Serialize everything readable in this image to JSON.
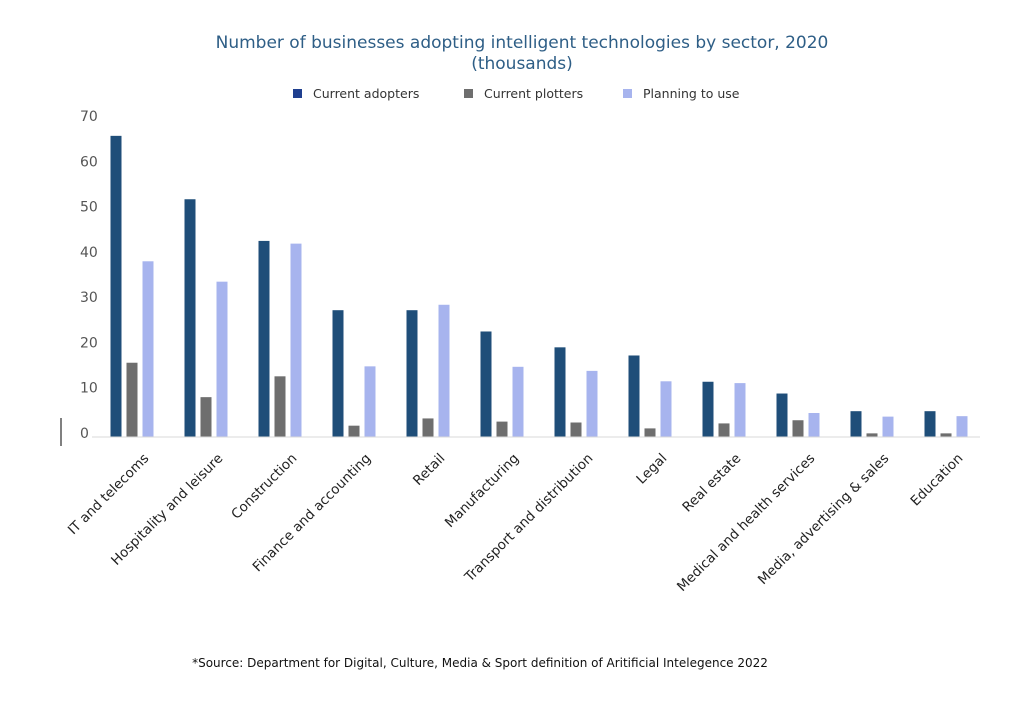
{
  "chart_data": {
    "type": "bar",
    "title": "Number of businesses adopting intelligent technologies by sector, 2020",
    "subtitle": "(thousands)",
    "categories": [
      "IT and telecoms",
      "Hospitality and leisure",
      "Construction",
      "Finance and accounting",
      "Retail",
      "Manufacturing",
      "Transport and distribution",
      "Legal",
      "Real estate",
      "Medical and health services",
      "Media, advertising & sales",
      "Education"
    ],
    "series": [
      {
        "name": "Current adopters",
        "color": "#1f4e79",
        "values": [
          66.5,
          52.5,
          43.3,
          28.0,
          28.0,
          23.3,
          19.8,
          18.0,
          12.2,
          9.6,
          5.7,
          5.7
        ]
      },
      {
        "name": "Current plotters",
        "color": "#6e6e6e",
        "values": [
          16.4,
          8.8,
          13.4,
          2.5,
          4.1,
          3.4,
          3.2,
          1.9,
          3.0,
          3.7,
          0.8,
          0.8
        ]
      },
      {
        "name": "Planning to use",
        "color": "#a7b4ee",
        "values": [
          38.8,
          34.3,
          42.7,
          15.6,
          29.2,
          15.5,
          14.6,
          12.3,
          11.9,
          5.3,
          4.5,
          4.6
        ]
      }
    ],
    "legend_swatch_colors": [
      "#1f3f8f",
      "#6e6e6e",
      "#a7b4ee"
    ],
    "yticks": [
      0,
      10,
      20,
      30,
      40,
      50,
      60,
      70
    ],
    "ylim": [
      0,
      70
    ],
    "xlabel": "",
    "ylabel": "",
    "grid": false,
    "legend_position": "top-center"
  },
  "source_note": "*Source: Department for Digital, Culture, Media & Sport definition of Aritificial Intelegence 2022"
}
